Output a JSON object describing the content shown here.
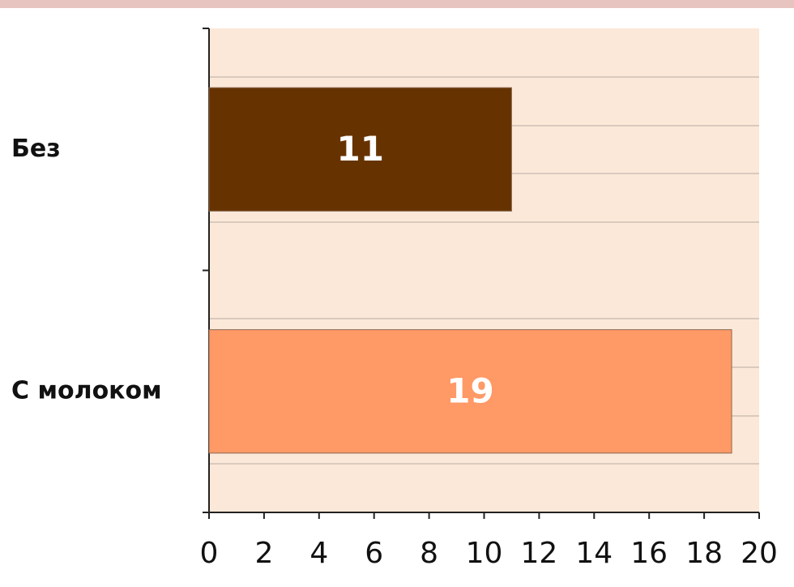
{
  "chart_data": {
    "type": "bar",
    "orientation": "horizontal",
    "categories": [
      "Без",
      "С молоком"
    ],
    "values": [
      11,
      19
    ],
    "colors": [
      "#663300",
      "#ff9966"
    ],
    "xlim": [
      0,
      20
    ],
    "xticks": [
      0,
      2,
      4,
      6,
      8,
      10,
      12,
      14,
      16,
      18,
      20
    ]
  }
}
